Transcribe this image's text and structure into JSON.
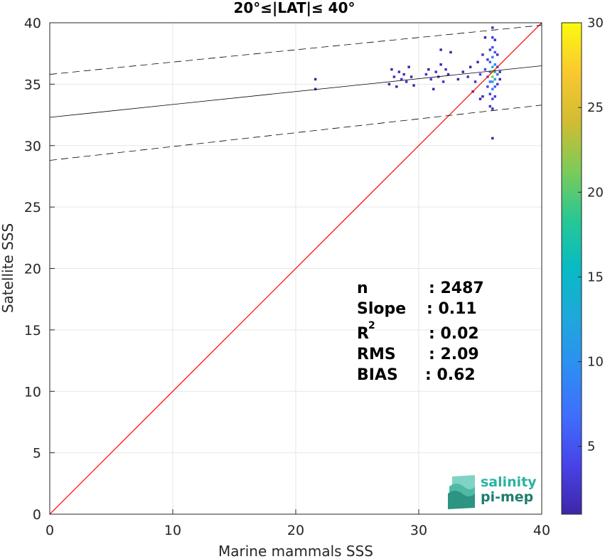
{
  "chart_data": {
    "type": "heatmap",
    "title": "20°≤|LAT|≤ 40°",
    "xlabel": "Marine mammals SSS",
    "ylabel": "Satellite SSS",
    "xlim": [
      0,
      40
    ],
    "ylim": [
      0,
      40
    ],
    "xticks": [
      "0",
      "10",
      "20",
      "30",
      "40"
    ],
    "yticks": [
      "0",
      "5",
      "10",
      "15",
      "20",
      "25",
      "30",
      "35",
      "40"
    ],
    "grid": true,
    "colorbar": {
      "range": [
        1,
        30
      ],
      "ticks": [
        "5",
        "10",
        "15",
        "20",
        "25",
        "30"
      ],
      "colormap": "parula"
    },
    "lines": {
      "identity": {
        "x": [
          0,
          40
        ],
        "y": [
          0,
          40
        ],
        "color": "#ff0000"
      },
      "fit": {
        "x": [
          0,
          40
        ],
        "y": [
          32.3,
          36.5
        ],
        "color": "#000000"
      },
      "fit_upper": {
        "x": [
          0,
          40
        ],
        "y": [
          35.8,
          39.8
        ],
        "color": "#000000",
        "dash": true
      },
      "fit_lower": {
        "x": [
          0,
          40
        ],
        "y": [
          28.8,
          33.3
        ],
        "color": "#000000",
        "dash": true
      }
    },
    "stats": [
      {
        "label": "n",
        "value": ": 2487"
      },
      {
        "label": "Slope",
        "value": ": 0.11"
      },
      {
        "label": "R",
        "sup": "2",
        "value": ": 0.02"
      },
      {
        "label": "RMS",
        "value": ": 2.09"
      },
      {
        "label": "BIAS",
        "value": ": 0.62"
      }
    ],
    "density_points": [
      {
        "x": 21.6,
        "y": 35.4,
        "count": 1
      },
      {
        "x": 21.6,
        "y": 34.6,
        "count": 1
      },
      {
        "x": 27.6,
        "y": 35.0,
        "count": 1
      },
      {
        "x": 27.8,
        "y": 36.2,
        "count": 1
      },
      {
        "x": 28.0,
        "y": 35.6,
        "count": 2
      },
      {
        "x": 28.2,
        "y": 34.8,
        "count": 1
      },
      {
        "x": 28.4,
        "y": 36.0,
        "count": 2
      },
      {
        "x": 28.6,
        "y": 35.4,
        "count": 3
      },
      {
        "x": 28.8,
        "y": 35.8,
        "count": 2
      },
      {
        "x": 29.0,
        "y": 35.2,
        "count": 2
      },
      {
        "x": 29.2,
        "y": 36.4,
        "count": 1
      },
      {
        "x": 29.4,
        "y": 35.6,
        "count": 1
      },
      {
        "x": 29.6,
        "y": 34.9,
        "count": 1
      },
      {
        "x": 30.6,
        "y": 35.8,
        "count": 2
      },
      {
        "x": 30.8,
        "y": 36.2,
        "count": 1
      },
      {
        "x": 31.0,
        "y": 35.4,
        "count": 3
      },
      {
        "x": 31.2,
        "y": 34.6,
        "count": 1
      },
      {
        "x": 31.4,
        "y": 36.0,
        "count": 2
      },
      {
        "x": 31.6,
        "y": 35.6,
        "count": 3
      },
      {
        "x": 31.8,
        "y": 36.6,
        "count": 1
      },
      {
        "x": 32.0,
        "y": 35.2,
        "count": 2
      },
      {
        "x": 32.2,
        "y": 36.2,
        "count": 2
      },
      {
        "x": 32.4,
        "y": 35.8,
        "count": 1
      },
      {
        "x": 32.6,
        "y": 37.6,
        "count": 1
      },
      {
        "x": 31.8,
        "y": 37.8,
        "count": 1
      },
      {
        "x": 33.2,
        "y": 35.4,
        "count": 1
      },
      {
        "x": 33.6,
        "y": 36.0,
        "count": 1
      },
      {
        "x": 34.0,
        "y": 35.6,
        "count": 2
      },
      {
        "x": 34.2,
        "y": 36.4,
        "count": 1
      },
      {
        "x": 34.4,
        "y": 34.4,
        "count": 1
      },
      {
        "x": 34.6,
        "y": 35.2,
        "count": 2
      },
      {
        "x": 34.8,
        "y": 36.8,
        "count": 1
      },
      {
        "x": 35.0,
        "y": 35.8,
        "count": 3
      },
      {
        "x": 35.0,
        "y": 33.8,
        "count": 1
      },
      {
        "x": 35.2,
        "y": 37.4,
        "count": 2
      },
      {
        "x": 35.2,
        "y": 34.0,
        "count": 1
      },
      {
        "x": 35.4,
        "y": 36.2,
        "count": 4
      },
      {
        "x": 35.4,
        "y": 38.8,
        "count": 1
      },
      {
        "x": 35.6,
        "y": 35.6,
        "count": 6
      },
      {
        "x": 35.6,
        "y": 34.8,
        "count": 4
      },
      {
        "x": 35.6,
        "y": 37.0,
        "count": 3
      },
      {
        "x": 35.8,
        "y": 36.0,
        "count": 10
      },
      {
        "x": 35.8,
        "y": 35.2,
        "count": 8
      },
      {
        "x": 35.8,
        "y": 36.8,
        "count": 6
      },
      {
        "x": 35.8,
        "y": 37.8,
        "count": 3
      },
      {
        "x": 35.8,
        "y": 34.2,
        "count": 3
      },
      {
        "x": 35.8,
        "y": 33.2,
        "count": 2
      },
      {
        "x": 36.0,
        "y": 36.0,
        "count": 28
      },
      {
        "x": 36.0,
        "y": 35.6,
        "count": 22
      },
      {
        "x": 36.0,
        "y": 36.4,
        "count": 14
      },
      {
        "x": 36.0,
        "y": 35.2,
        "count": 12
      },
      {
        "x": 36.0,
        "y": 37.2,
        "count": 9
      },
      {
        "x": 36.0,
        "y": 34.6,
        "count": 8
      },
      {
        "x": 36.0,
        "y": 38.0,
        "count": 5
      },
      {
        "x": 36.0,
        "y": 38.8,
        "count": 3
      },
      {
        "x": 36.0,
        "y": 39.6,
        "count": 2
      },
      {
        "x": 36.0,
        "y": 33.8,
        "count": 4
      },
      {
        "x": 36.0,
        "y": 33.0,
        "count": 2
      },
      {
        "x": 36.0,
        "y": 30.6,
        "count": 1
      },
      {
        "x": 36.2,
        "y": 36.0,
        "count": 18
      },
      {
        "x": 36.2,
        "y": 35.4,
        "count": 12
      },
      {
        "x": 36.2,
        "y": 36.6,
        "count": 9
      },
      {
        "x": 36.2,
        "y": 37.6,
        "count": 5
      },
      {
        "x": 36.2,
        "y": 34.8,
        "count": 6
      },
      {
        "x": 36.2,
        "y": 34.0,
        "count": 3
      },
      {
        "x": 36.2,
        "y": 38.6,
        "count": 2
      },
      {
        "x": 36.4,
        "y": 35.8,
        "count": 7
      },
      {
        "x": 36.4,
        "y": 36.4,
        "count": 4
      },
      {
        "x": 36.4,
        "y": 35.0,
        "count": 3
      },
      {
        "x": 36.4,
        "y": 37.4,
        "count": 2
      },
      {
        "x": 36.6,
        "y": 36.0,
        "count": 2
      },
      {
        "x": 36.6,
        "y": 35.4,
        "count": 1
      }
    ]
  },
  "logo": {
    "line1": "salinity",
    "line2": "pi-mep"
  }
}
